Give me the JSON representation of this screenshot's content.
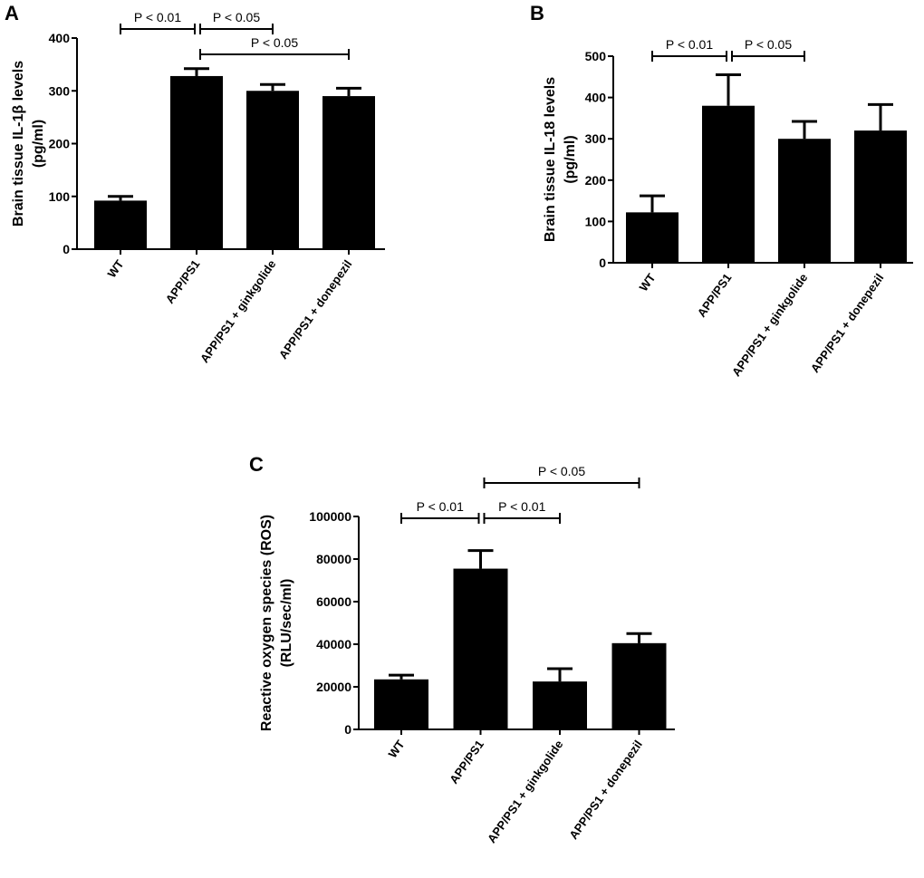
{
  "chart_data": [
    {
      "type": "bar",
      "panel_label": "A",
      "categories": [
        "WT",
        "APP/PS1",
        "APP/PS1 + ginkgolide",
        "APP/PS1 + donepezil"
      ],
      "values": [
        92,
        328,
        300,
        290
      ],
      "error_upper": [
        100,
        342,
        312,
        305
      ],
      "ylabel": [
        "Brain tissue IL-1β  levels",
        "(pg/ml)"
      ],
      "ylim": [
        0,
        400
      ],
      "yticks": [
        0,
        100,
        200,
        300,
        400
      ],
      "ytick_labels": [
        "0",
        "100",
        "200",
        "300",
        "400"
      ],
      "bar_color": "#000000",
      "grid": false,
      "significance": [
        {
          "from": 0,
          "to": 1,
          "label": "P < 0.01",
          "level": 0
        },
        {
          "from": 1,
          "to": 2,
          "label": "P < 0.05",
          "level": 0
        },
        {
          "from": 1,
          "to": 3,
          "label": "P < 0.05",
          "level": 1
        }
      ]
    },
    {
      "type": "bar",
      "panel_label": "B",
      "categories": [
        "WT",
        "APP/PS1",
        "APP/PS1 + ginkgolide",
        "APP/PS1 + donepezil"
      ],
      "values": [
        122,
        380,
        300,
        320
      ],
      "error_upper": [
        162,
        455,
        342,
        383
      ],
      "ylabel": [
        "Brain tissue IL-18 levels",
        "(pg/ml)"
      ],
      "ylim": [
        0,
        500
      ],
      "yticks": [
        0,
        100,
        200,
        300,
        400,
        500
      ],
      "ytick_labels": [
        "0",
        "100",
        "200",
        "300",
        "400",
        "500"
      ],
      "bar_color": "#000000",
      "grid": false,
      "significance": [
        {
          "from": 0,
          "to": 1,
          "label": "P < 0.01",
          "level": 0
        },
        {
          "from": 1,
          "to": 2,
          "label": "P < 0.05",
          "level": 0
        }
      ]
    },
    {
      "type": "bar",
      "panel_label": "C",
      "categories": [
        "WT",
        "APP/PS1",
        "APP/PS1 + ginkgolide",
        "APP/PS1 + donepezil"
      ],
      "values": [
        23500,
        75500,
        22500,
        40500
      ],
      "error_upper": [
        25500,
        84000,
        28500,
        45000
      ],
      "ylabel": [
        "Reactive oxygen species (ROS)",
        "(RLU/sec/ml)"
      ],
      "ylim": [
        0,
        100000
      ],
      "yticks": [
        0,
        20000,
        40000,
        60000,
        80000,
        100000
      ],
      "ytick_labels": [
        "0",
        "20000",
        "40000",
        "60000",
        "80000",
        "100000"
      ],
      "bar_color": "#000000",
      "grid": false,
      "significance": [
        {
          "from": 0,
          "to": 1,
          "label": "P < 0.01",
          "level": 0
        },
        {
          "from": 1,
          "to": 2,
          "label": "P < 0.01",
          "level": 0
        },
        {
          "from": 1,
          "to": 3,
          "label": "P < 0.05",
          "level": 1
        }
      ]
    }
  ]
}
